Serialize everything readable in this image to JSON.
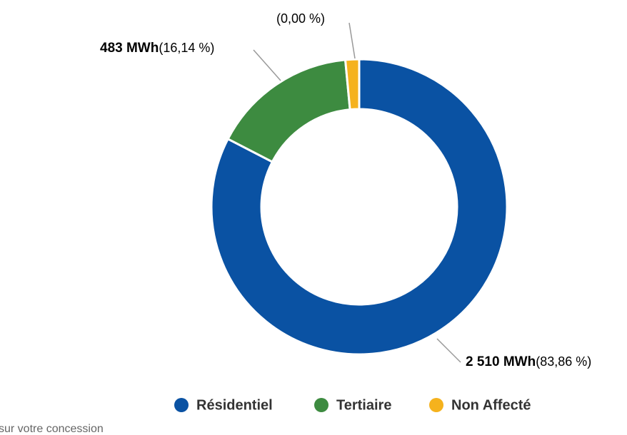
{
  "chart_data": {
    "type": "donut",
    "categories": [
      "Résidentiel",
      "Tertiaire",
      "Non Affecté"
    ],
    "values": [
      2510,
      483,
      0
    ],
    "value_labels": [
      "2 510 MWh",
      "483 MWh",
      null
    ],
    "percentages": [
      83.86,
      16.14,
      0
    ],
    "percentage_labels": [
      "(83,86 %)",
      "(16,14 %)",
      "(0,00 %)"
    ],
    "colors": [
      "#0a52a3",
      "#3d8b40",
      "#f5b21d"
    ],
    "legend": "bottom",
    "footnote": "sur votre concession"
  }
}
